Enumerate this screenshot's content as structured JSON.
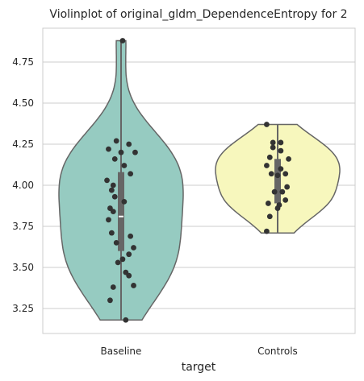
{
  "chart_data": {
    "type": "violin",
    "title": "Violinplot of original_gldm_DependenceEntropy for 2",
    "xlabel": "target",
    "ylabel": "",
    "categories": [
      "Baseline",
      "Controls"
    ],
    "ylim": [
      3.1,
      4.95
    ],
    "yticks": [
      3.25,
      3.5,
      3.75,
      4.0,
      4.25,
      4.5,
      4.75
    ],
    "ytick_labels": [
      "3.25",
      "3.50",
      "3.75",
      "4.00",
      "4.25",
      "4.50",
      "4.75"
    ],
    "grid": "horizontal",
    "colors": {
      "Baseline": "#96cbc1",
      "Controls": "#f7f7bd",
      "outline": "#666666",
      "points": "#333333",
      "box": "#666666",
      "median": "#ffffff",
      "grid": "#cccccc"
    },
    "series": [
      {
        "name": "Baseline",
        "min": 3.18,
        "q1": 3.6,
        "median": 3.81,
        "q3": 4.08,
        "max": 4.88,
        "points": [
          [
            0.01,
            4.88
          ],
          [
            -0.03,
            4.27
          ],
          [
            0.05,
            4.25
          ],
          [
            -0.08,
            4.22
          ],
          [
            0.0,
            4.2
          ],
          [
            0.09,
            4.2
          ],
          [
            -0.04,
            4.16
          ],
          [
            0.02,
            4.12
          ],
          [
            0.06,
            4.07
          ],
          [
            -0.09,
            4.03
          ],
          [
            -0.05,
            4.0
          ],
          [
            -0.06,
            3.97
          ],
          [
            -0.04,
            3.93
          ],
          [
            0.02,
            3.9
          ],
          [
            -0.07,
            3.86
          ],
          [
            -0.05,
            3.84
          ],
          [
            -0.08,
            3.79
          ],
          [
            -0.06,
            3.71
          ],
          [
            0.06,
            3.69
          ],
          [
            -0.03,
            3.65
          ],
          [
            0.08,
            3.62
          ],
          [
            0.05,
            3.58
          ],
          [
            0.01,
            3.55
          ],
          [
            -0.02,
            3.53
          ],
          [
            0.03,
            3.47
          ],
          [
            0.05,
            3.45
          ],
          [
            0.08,
            3.39
          ],
          [
            -0.05,
            3.38
          ],
          [
            -0.07,
            3.3
          ],
          [
            0.03,
            3.18
          ]
        ]
      },
      {
        "name": "Controls",
        "min": 3.71,
        "q1": 3.89,
        "median": 4.06,
        "q3": 4.16,
        "max": 4.37,
        "points": [
          [
            -0.07,
            4.37
          ],
          [
            -0.03,
            4.26
          ],
          [
            0.02,
            4.26
          ],
          [
            -0.03,
            4.23
          ],
          [
            0.02,
            4.21
          ],
          [
            -0.05,
            4.17
          ],
          [
            0.07,
            4.16
          ],
          [
            -0.07,
            4.12
          ],
          [
            0.02,
            4.1
          ],
          [
            -0.04,
            4.07
          ],
          [
            0.0,
            4.06
          ],
          [
            0.05,
            4.07
          ],
          [
            0.06,
            3.99
          ],
          [
            -0.02,
            3.96
          ],
          [
            0.03,
            3.96
          ],
          [
            0.05,
            3.91
          ],
          [
            -0.06,
            3.89
          ],
          [
            0.01,
            3.88
          ],
          [
            -0.05,
            3.81
          ],
          [
            0.0,
            3.86
          ],
          [
            -0.07,
            3.72
          ]
        ]
      }
    ]
  }
}
